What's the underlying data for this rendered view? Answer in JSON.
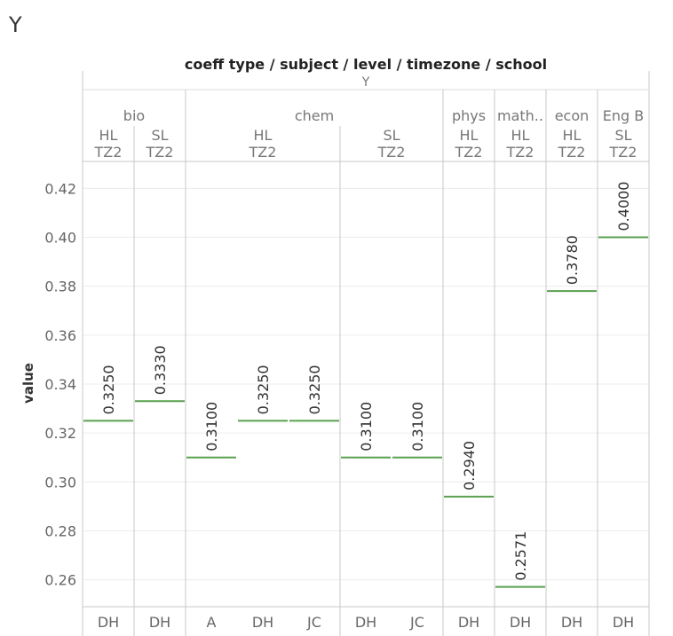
{
  "title": "Y",
  "chart_data": {
    "type": "scatter",
    "mark": "horizontal-line",
    "header_title": "coeff type / subject / level / timezone / school",
    "coeff_type": "Y",
    "ylabel": "value",
    "ylim": [
      0.249,
      0.431
    ],
    "yticks": [
      0.26,
      0.28,
      0.3,
      0.32,
      0.34,
      0.36,
      0.38,
      0.4,
      0.42
    ],
    "ytick_labels": [
      "0.26",
      "0.28",
      "0.30",
      "0.32",
      "0.34",
      "0.36",
      "0.38",
      "0.40",
      "0.42"
    ],
    "grid": true,
    "line_color": "#59a14f",
    "subjects": [
      {
        "name": "bio",
        "cols": 2
      },
      {
        "name": "chem",
        "cols": 5
      },
      {
        "name": "phys",
        "cols": 1
      },
      {
        "name": "math..",
        "cols": 1
      },
      {
        "name": "econ",
        "cols": 1
      },
      {
        "name": "Eng B",
        "cols": 1
      }
    ],
    "levels": [
      {
        "level": "HL",
        "timezone": "TZ2",
        "cols": 1
      },
      {
        "level": "SL",
        "timezone": "TZ2",
        "cols": 1
      },
      {
        "level": "HL",
        "timezone": "TZ2",
        "cols": 3
      },
      {
        "level": "SL",
        "timezone": "TZ2",
        "cols": 2
      },
      {
        "level": "HL",
        "timezone": "TZ2",
        "cols": 1
      },
      {
        "level": "HL",
        "timezone": "TZ2",
        "cols": 1
      },
      {
        "level": "HL",
        "timezone": "TZ2",
        "cols": 1
      },
      {
        "level": "SL",
        "timezone": "TZ2",
        "cols": 1
      }
    ],
    "points": [
      {
        "school": "DH",
        "value": 0.325,
        "label": "0.3250"
      },
      {
        "school": "DH",
        "value": 0.333,
        "label": "0.3330"
      },
      {
        "school": "A",
        "value": 0.31,
        "label": "0.3100"
      },
      {
        "school": "DH",
        "value": 0.325,
        "label": "0.3250"
      },
      {
        "school": "JC",
        "value": 0.325,
        "label": "0.3250"
      },
      {
        "school": "DH",
        "value": 0.31,
        "label": "0.3100"
      },
      {
        "school": "JC",
        "value": 0.31,
        "label": "0.3100"
      },
      {
        "school": "DH",
        "value": 0.294,
        "label": "0.2940"
      },
      {
        "school": "DH",
        "value": 0.2571,
        "label": "0.2571"
      },
      {
        "school": "DH",
        "value": 0.378,
        "label": "0.3780"
      },
      {
        "school": "DH",
        "value": 0.4,
        "label": "0.4000"
      }
    ]
  }
}
